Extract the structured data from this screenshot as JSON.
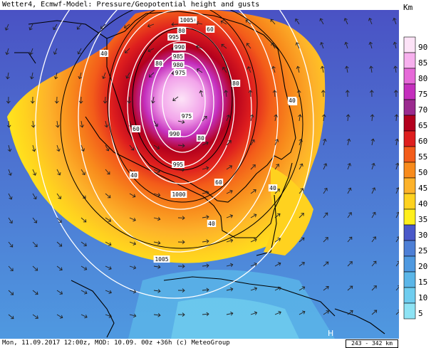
{
  "title": "Wetter4, Ecmwf-Model: Pressure/Geopotential height and gusts",
  "footer": "Mon, 11.09.2017 12:00z, MOD: 10.09. 00z +36h (c) MeteoGroup",
  "scale_label": "243 - 342 km",
  "legend": {
    "unit": "Km",
    "levels": [
      {
        "label": "90",
        "color": "#fde3f7"
      },
      {
        "label": "85",
        "color": "#f7b0ee"
      },
      {
        "label": "80",
        "color": "#e66ad8"
      },
      {
        "label": "75",
        "color": "#c42fbd"
      },
      {
        "label": "70",
        "color": "#9b2b8f"
      },
      {
        "label": "65",
        "color": "#b3001d"
      },
      {
        "label": "60",
        "color": "#de1e1e"
      },
      {
        "label": "55",
        "color": "#f35c1a"
      },
      {
        "label": "50",
        "color": "#f88b1c"
      },
      {
        "label": "45",
        "color": "#fdb22a"
      },
      {
        "label": "40",
        "color": "#ffd21f"
      },
      {
        "label": "35",
        "color": "#ffef1c"
      },
      {
        "label": "30",
        "color": "#4a58c9"
      },
      {
        "label": "25",
        "color": "#4d7fd6"
      },
      {
        "label": "20",
        "color": "#4f99e0"
      },
      {
        "label": "15",
        "color": "#5bb6e8"
      },
      {
        "label": "10",
        "color": "#6fcdef"
      },
      {
        "label": "5",
        "color": "#8ee3f4"
      }
    ]
  },
  "isobar_labels": [
    "1000",
    "995",
    "990",
    "985",
    "980",
    "975",
    "990",
    "995",
    "1000",
    "1005",
    "975",
    "1005"
  ],
  "gust_labels": [
    "40",
    "40",
    "60",
    "60",
    "80",
    "80",
    "80",
    "60",
    "40",
    "40",
    "40",
    "40",
    "80"
  ],
  "marker": "H"
}
